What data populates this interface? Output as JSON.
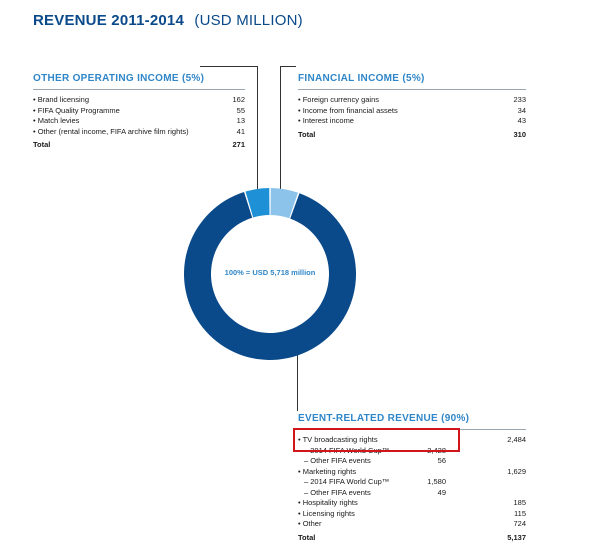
{
  "header": {
    "title": "REVENUE 2011-2014",
    "unit": "(USD MILLION)"
  },
  "colors": {
    "event_related": "#0b4a8a",
    "other_operating": "#1e90d6",
    "financial": "#8cc3ea",
    "accent_title": "#2f86c8",
    "highlight_box": "#d0151b"
  },
  "center_label": "100% = USD 5,718 million",
  "chart_data": {
    "type": "pie",
    "categories": [
      "Event-related revenue",
      "Other operating income",
      "Financial income"
    ],
    "values": [
      5137,
      271,
      310
    ],
    "total": 5718
  },
  "other_operating": {
    "title": "OTHER OPERATING INCOME (5%)",
    "items": [
      {
        "label": "• Brand licensing",
        "value": "162"
      },
      {
        "label": "• FIFA Quality Programme",
        "value": "55"
      },
      {
        "label": "• Match levies",
        "value": "13"
      },
      {
        "label": "• Other (rental income, FIFA archive film rights)",
        "value": "41"
      }
    ],
    "total_label": "Total",
    "total_value": "271"
  },
  "financial": {
    "title": "FINANCIAL INCOME (5%)",
    "items": [
      {
        "label": "• Foreign currency gains",
        "value": "233"
      },
      {
        "label": "• Income from financial assets",
        "value": "34"
      },
      {
        "label": "• Interest income",
        "value": "43"
      }
    ],
    "total_label": "Total",
    "total_value": "310"
  },
  "event_related": {
    "title": "EVENT-RELATED REVENUE (90%)",
    "items": [
      {
        "label": "• TV broadcasting rights",
        "c1": "",
        "c2": "2,484",
        "sub": false
      },
      {
        "label": "– 2014 FIFA World Cup™",
        "c1": "2,428",
        "c2": "",
        "sub": true
      },
      {
        "label": "– Other FIFA events",
        "c1": "56",
        "c2": "",
        "sub": true
      },
      {
        "label": "• Marketing rights",
        "c1": "",
        "c2": "1,629",
        "sub": false
      },
      {
        "label": "– 2014 FIFA World Cup™",
        "c1": "1,580",
        "c2": "",
        "sub": true
      },
      {
        "label": "– Other FIFA events",
        "c1": "49",
        "c2": "",
        "sub": true
      },
      {
        "label": "• Hospitality rights",
        "c1": "",
        "c2": "185",
        "sub": false
      },
      {
        "label": "• Licensing rights",
        "c1": "",
        "c2": "115",
        "sub": false
      },
      {
        "label": "• Other",
        "c1": "",
        "c2": "724",
        "sub": false
      }
    ],
    "total_label": "Total",
    "total_value": "5,137"
  }
}
